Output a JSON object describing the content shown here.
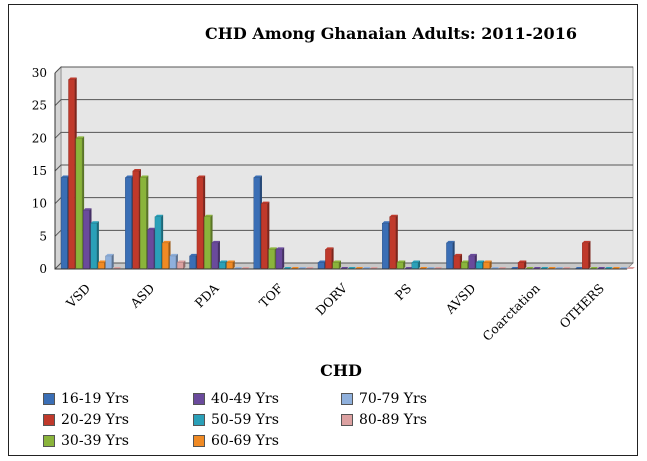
{
  "chart_data": {
    "type": "bar",
    "title": "CHD Among Ghanaian Adults: 2011-2016",
    "xlabel": "CHD",
    "ylabel": "",
    "ylim": [
      0,
      30
    ],
    "yticks": [
      0,
      5,
      10,
      15,
      20,
      25,
      30
    ],
    "categories": [
      "VSD",
      "ASD",
      "PDA",
      "TOF",
      "DORV",
      "PS",
      "AVSD",
      "Coarctation",
      "OTHERS"
    ],
    "legend_position": "bottom",
    "series": [
      {
        "name": "16-19 Yrs",
        "color": "#3a6eb5",
        "values": [
          14,
          14,
          2,
          14,
          1,
          7,
          4,
          0,
          0
        ]
      },
      {
        "name": "20-29 Yrs",
        "color": "#c0392b",
        "values": [
          29,
          15,
          14,
          10,
          3,
          8,
          2,
          1,
          4
        ]
      },
      {
        "name": "30-39 Yrs",
        "color": "#8ab43b",
        "values": [
          20,
          14,
          8,
          3,
          1,
          1,
          1,
          0,
          0
        ]
      },
      {
        "name": "40-49 Yrs",
        "color": "#6a4a9c",
        "values": [
          9,
          6,
          4,
          3,
          0,
          0,
          2,
          0,
          0
        ]
      },
      {
        "name": "50-59 Yrs",
        "color": "#2aa0b8",
        "values": [
          7,
          8,
          1,
          0,
          0,
          1,
          1,
          0,
          0
        ]
      },
      {
        "name": "60-69 Yrs",
        "color": "#f08a24",
        "values": [
          1,
          4,
          1,
          0,
          0,
          0,
          1,
          0,
          0
        ]
      },
      {
        "name": "70-79 Yrs",
        "color": "#8fb0dc",
        "values": [
          2,
          2,
          0,
          0,
          0,
          0,
          0,
          0,
          0
        ]
      },
      {
        "name": "80-89 Yrs",
        "color": "#dca1a1",
        "values": [
          0,
          1,
          0,
          0,
          0,
          0,
          0,
          0,
          0
        ]
      }
    ]
  }
}
